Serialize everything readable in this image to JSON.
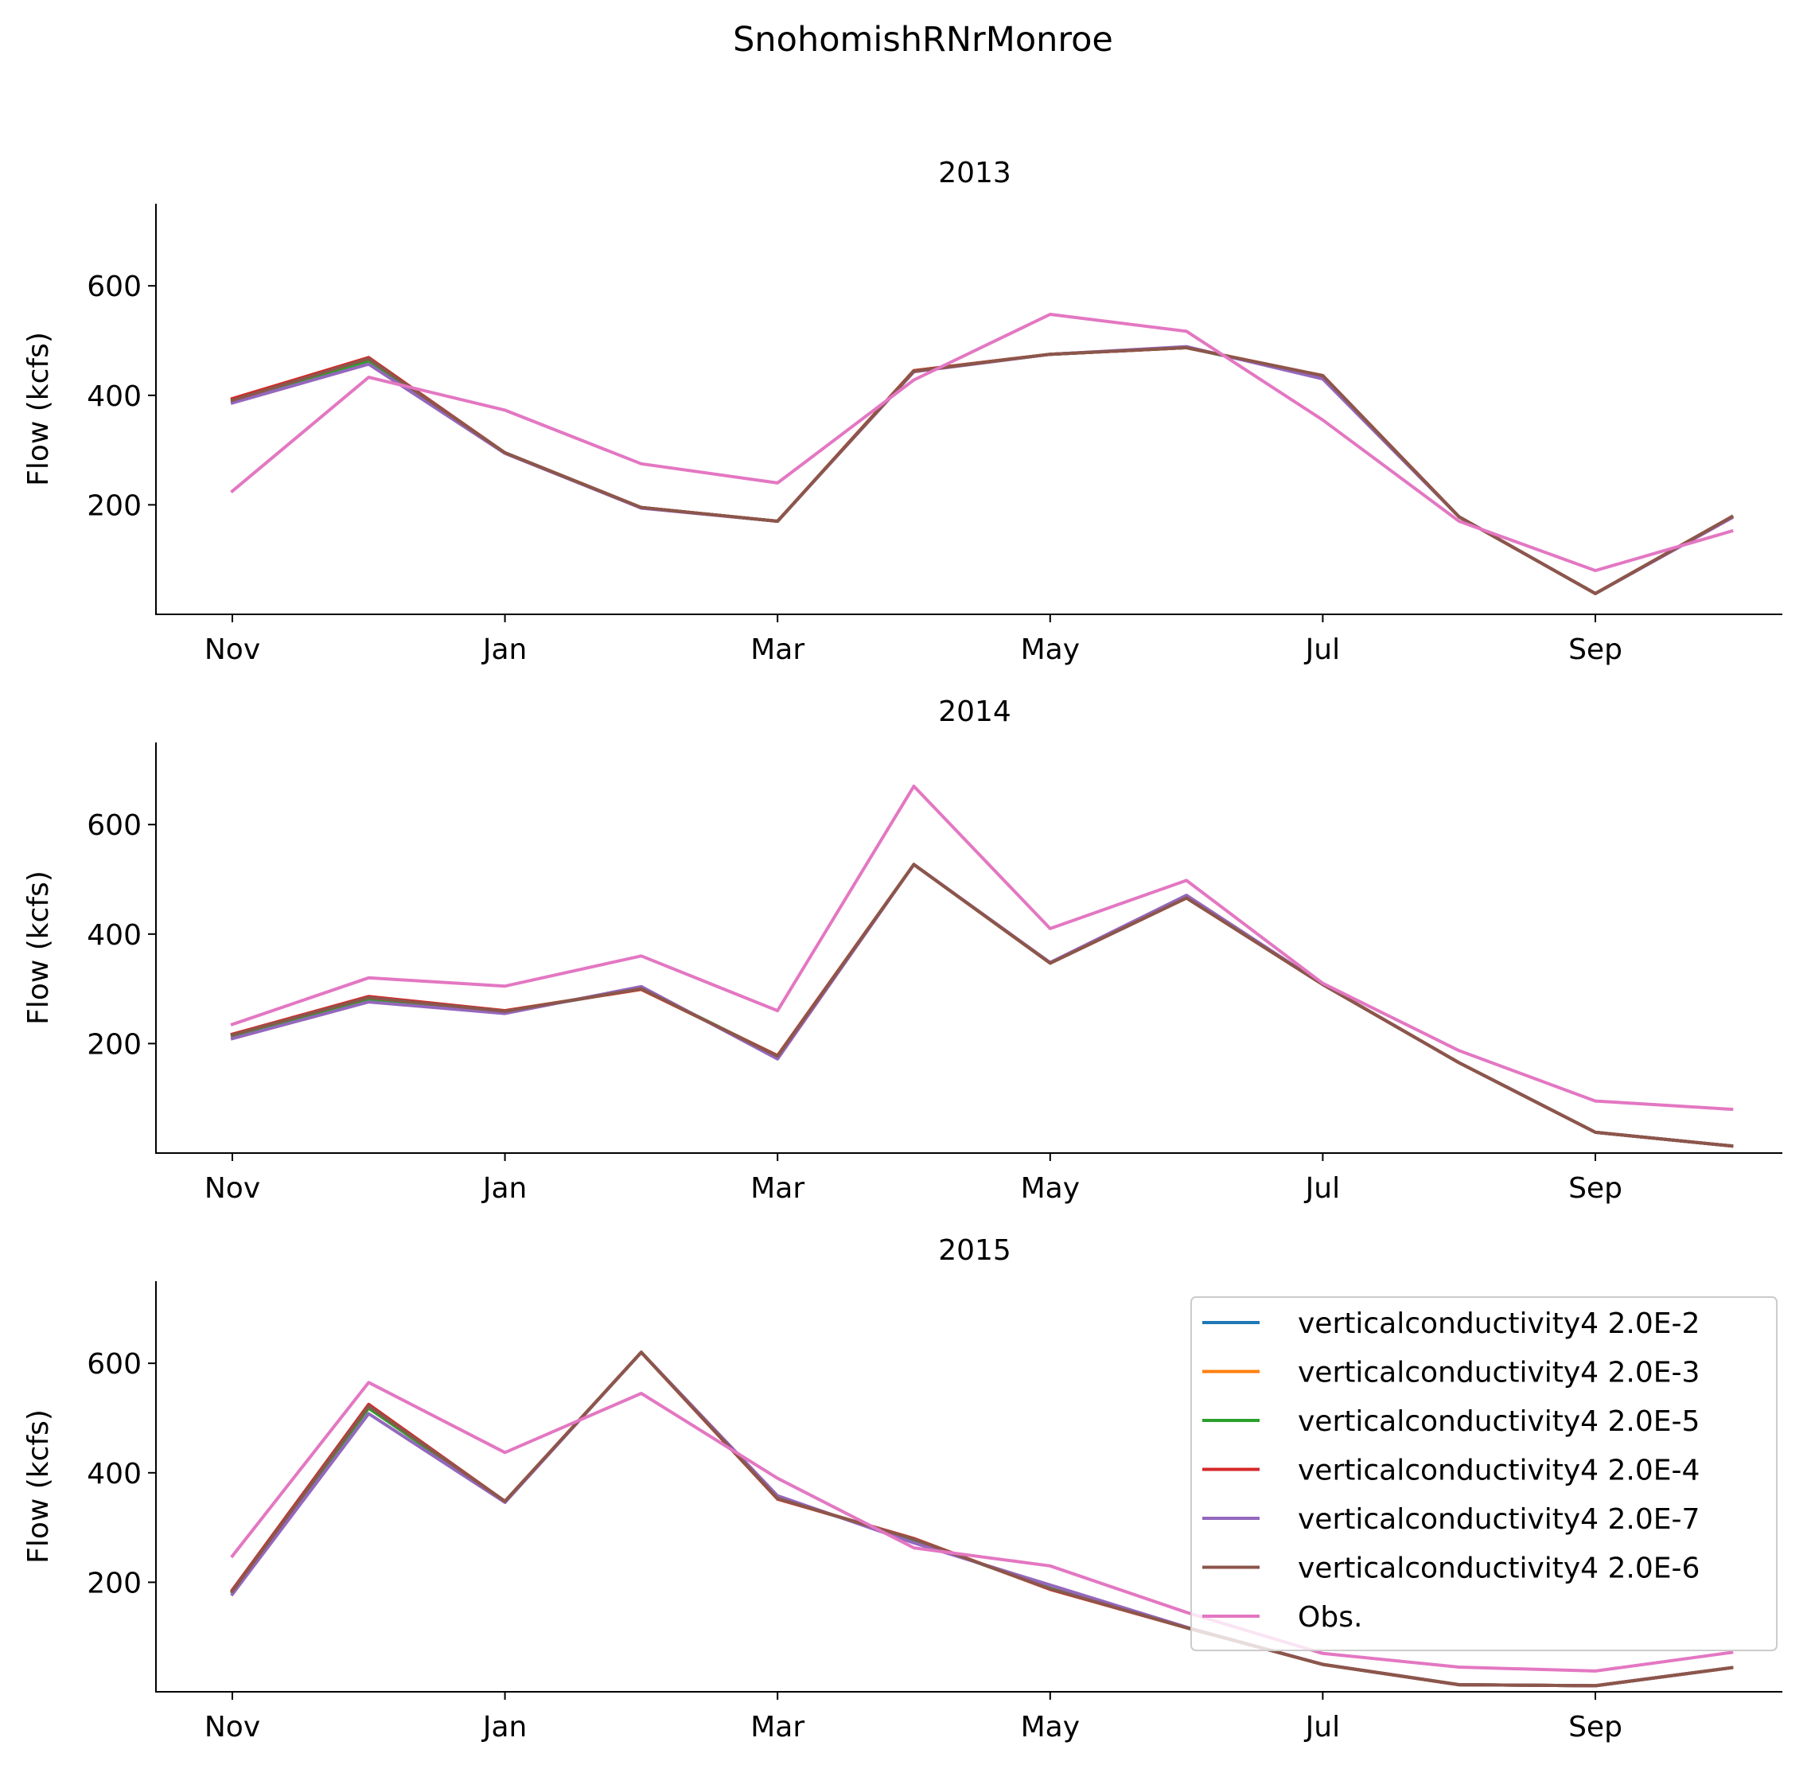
{
  "figure": {
    "suptitle": "SnohomishRNrMonroe"
  },
  "chart_data": [
    {
      "type": "line",
      "title": "2013",
      "xlabel": "",
      "ylabel": "Flow (kcfs)",
      "x": [
        "Nov",
        "Dec",
        "Jan",
        "Feb",
        "Mar",
        "Apr",
        "May",
        "Jun",
        "Jul",
        "Aug",
        "Sep",
        "Oct"
      ],
      "x_tick_labels": [
        "Nov",
        "Jan",
        "Mar",
        "May",
        "Jul",
        "Sep"
      ],
      "y_ticks": [
        200,
        400,
        600
      ],
      "ylim": [
        0,
        750
      ],
      "grid": false,
      "legend": false,
      "series": [
        {
          "name": "verticalconductivity4 2.0E-2",
          "color": "#1f77b4",
          "values": [
            390,
            465,
            295,
            195,
            170,
            445,
            475,
            487,
            435,
            178,
            38,
            178
          ]
        },
        {
          "name": "verticalconductivity4 2.0E-3",
          "color": "#ff7f0e",
          "values": [
            393,
            468,
            295,
            195,
            170,
            445,
            475,
            487,
            436,
            178,
            38,
            178
          ]
        },
        {
          "name": "verticalconductivity4 2.0E-5",
          "color": "#2ca02c",
          "values": [
            390,
            463,
            295,
            195,
            170,
            445,
            475,
            487,
            434,
            178,
            38,
            178
          ]
        },
        {
          "name": "verticalconductivity4 2.0E-4",
          "color": "#d62728",
          "values": [
            394,
            469,
            295,
            195,
            170,
            445,
            475,
            487,
            436,
            178,
            38,
            178
          ]
        },
        {
          "name": "verticalconductivity4 2.0E-7",
          "color": "#9467bd",
          "values": [
            386,
            457,
            294,
            194,
            170,
            443,
            475,
            489,
            430,
            178,
            38,
            176
          ]
        },
        {
          "name": "verticalconductivity4 2.0E-6",
          "color": "#8c564b",
          "values": [
            391,
            467,
            295,
            195,
            170,
            444,
            475,
            487,
            436,
            178,
            38,
            178
          ]
        },
        {
          "name": "Obs.",
          "color": "#e377c2",
          "values": [
            225,
            433,
            373,
            275,
            240,
            428,
            548,
            517,
            355,
            170,
            80,
            152
          ]
        }
      ]
    },
    {
      "type": "line",
      "title": "2014",
      "xlabel": "",
      "ylabel": "Flow (kcfs)",
      "x": [
        "Nov",
        "Dec",
        "Jan",
        "Feb",
        "Mar",
        "Apr",
        "May",
        "Jun",
        "Jul",
        "Aug",
        "Sep",
        "Oct"
      ],
      "x_tick_labels": [
        "Nov",
        "Jan",
        "Mar",
        "May",
        "Jul",
        "Sep"
      ],
      "y_ticks": [
        200,
        400,
        600
      ],
      "ylim": [
        0,
        750
      ],
      "grid": false,
      "legend": false,
      "series": [
        {
          "name": "verticalconductivity4 2.0E-2",
          "color": "#1f77b4",
          "values": [
            215,
            283,
            258,
            300,
            177,
            527,
            347,
            466,
            308,
            165,
            38,
            13
          ]
        },
        {
          "name": "verticalconductivity4 2.0E-3",
          "color": "#ff7f0e",
          "values": [
            217,
            285,
            260,
            299,
            178,
            527,
            347,
            466,
            308,
            165,
            38,
            13
          ]
        },
        {
          "name": "verticalconductivity4 2.0E-5",
          "color": "#2ca02c",
          "values": [
            214,
            281,
            258,
            301,
            177,
            527,
            347,
            467,
            308,
            165,
            38,
            13
          ]
        },
        {
          "name": "verticalconductivity4 2.0E-4",
          "color": "#d62728",
          "values": [
            217,
            286,
            260,
            299,
            178,
            527,
            347,
            466,
            308,
            165,
            38,
            13
          ]
        },
        {
          "name": "verticalconductivity4 2.0E-7",
          "color": "#9467bd",
          "values": [
            209,
            276,
            255,
            304,
            172,
            527,
            348,
            471,
            308,
            165,
            38,
            13
          ]
        },
        {
          "name": "verticalconductivity4 2.0E-6",
          "color": "#8c564b",
          "values": [
            216,
            284,
            259,
            300,
            177,
            527,
            347,
            466,
            308,
            165,
            38,
            13
          ]
        },
        {
          "name": "Obs.",
          "color": "#e377c2",
          "values": [
            235,
            320,
            305,
            360,
            260,
            670,
            410,
            498,
            310,
            187,
            95,
            80
          ]
        }
      ]
    },
    {
      "type": "line",
      "title": "2015",
      "xlabel": "",
      "ylabel": "Flow (kcfs)",
      "x": [
        "Nov",
        "Dec",
        "Jan",
        "Feb",
        "Mar",
        "Apr",
        "May",
        "Jun",
        "Jul",
        "Aug",
        "Sep",
        "Oct"
      ],
      "x_tick_labels": [
        "Nov",
        "Jan",
        "Mar",
        "May",
        "Jul",
        "Sep"
      ],
      "y_ticks": [
        200,
        400,
        600
      ],
      "ylim": [
        0,
        750
      ],
      "grid": false,
      "legend": {
        "placement": "lower-right",
        "entries": [
          {
            "label": "verticalconductivity4 2.0E-2",
            "color": "#1f77b4"
          },
          {
            "label": "verticalconductivity4 2.0E-3",
            "color": "#ff7f0e"
          },
          {
            "label": "verticalconductivity4 2.0E-5",
            "color": "#2ca02c"
          },
          {
            "label": "verticalconductivity4 2.0E-4",
            "color": "#d62728"
          },
          {
            "label": "verticalconductivity4 2.0E-7",
            "color": "#9467bd"
          },
          {
            "label": "verticalconductivity4 2.0E-6",
            "color": "#8c564b"
          },
          {
            "label": "Obs.",
            "color": "#e377c2"
          }
        ]
      },
      "series": [
        {
          "name": "verticalconductivity4 2.0E-2",
          "color": "#1f77b4",
          "values": [
            183,
            520,
            348,
            620,
            353,
            278,
            188,
            117,
            50,
            13,
            11,
            44
          ]
        },
        {
          "name": "verticalconductivity4 2.0E-3",
          "color": "#ff7f0e",
          "values": [
            185,
            523,
            348,
            620,
            352,
            280,
            187,
            117,
            50,
            13,
            11,
            44
          ]
        },
        {
          "name": "verticalconductivity4 2.0E-5",
          "color": "#2ca02c",
          "values": [
            182,
            518,
            347,
            620,
            354,
            277,
            189,
            117,
            50,
            13,
            11,
            44
          ]
        },
        {
          "name": "verticalconductivity4 2.0E-4",
          "color": "#d62728",
          "values": [
            186,
            525,
            348,
            620,
            352,
            280,
            187,
            117,
            50,
            13,
            11,
            44
          ]
        },
        {
          "name": "verticalconductivity4 2.0E-7",
          "color": "#9467bd",
          "values": [
            178,
            508,
            346,
            620,
            358,
            272,
            195,
            118,
            50,
            13,
            11,
            44
          ]
        },
        {
          "name": "verticalconductivity4 2.0E-6",
          "color": "#8c564b",
          "values": [
            184,
            522,
            348,
            620,
            353,
            279,
            188,
            117,
            50,
            13,
            11,
            44
          ]
        },
        {
          "name": "Obs.",
          "color": "#e377c2",
          "values": [
            248,
            565,
            437,
            545,
            390,
            263,
            230,
            145,
            70,
            45,
            38,
            72
          ]
        }
      ]
    }
  ]
}
